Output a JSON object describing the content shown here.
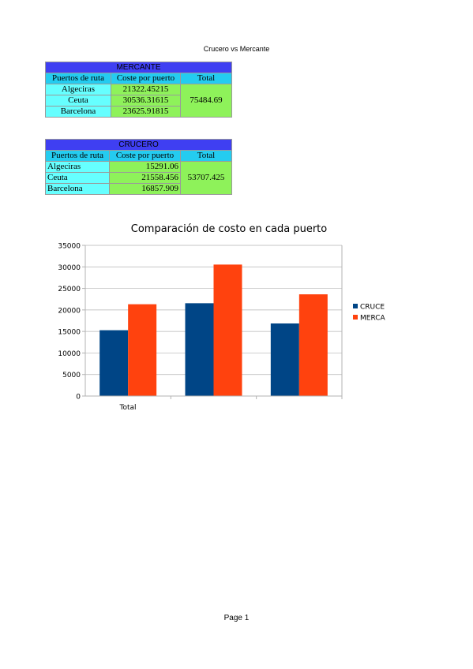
{
  "page_title": "Crucero vs Mercante",
  "footer": "Page 1",
  "mercante": {
    "title": "MERCANTE",
    "headers": [
      "Puertos de ruta",
      "Coste por puerto",
      "Total"
    ],
    "rows": [
      {
        "port": "Algeciras",
        "cost": "21322.45215"
      },
      {
        "port": "Ceuta",
        "cost": "30536.31615"
      },
      {
        "port": "Barcelona",
        "cost": "23625.91815"
      }
    ],
    "total": "75484.69"
  },
  "crucero": {
    "title": "CRUCERO",
    "headers": [
      "Puertos de ruta",
      "Coste por puerto",
      "Total"
    ],
    "rows": [
      {
        "port": "Algeciras",
        "cost": "15291.06"
      },
      {
        "port": "Ceuta",
        "cost": "21558.456"
      },
      {
        "port": "Barcelona",
        "cost": "16857.909"
      }
    ],
    "total": "53707.425"
  },
  "chart_data": {
    "type": "bar",
    "title": "Comparación de costo en cada puerto",
    "categories": [
      "Total",
      "",
      ""
    ],
    "series": [
      {
        "name": "CRUCE",
        "color": "#004586",
        "values": [
          15291.06,
          21558.456,
          16857.909
        ]
      },
      {
        "name": "MERCA",
        "color": "#ff420e",
        "values": [
          21322.45215,
          30536.31615,
          23625.91815
        ]
      }
    ],
    "ylim": [
      0,
      35000
    ],
    "yticks": [
      "0",
      "5000",
      "10000",
      "15000",
      "20000",
      "25000",
      "30000",
      "35000"
    ],
    "grid": true,
    "legend": "right",
    "xlabel": "",
    "ylabel": ""
  }
}
